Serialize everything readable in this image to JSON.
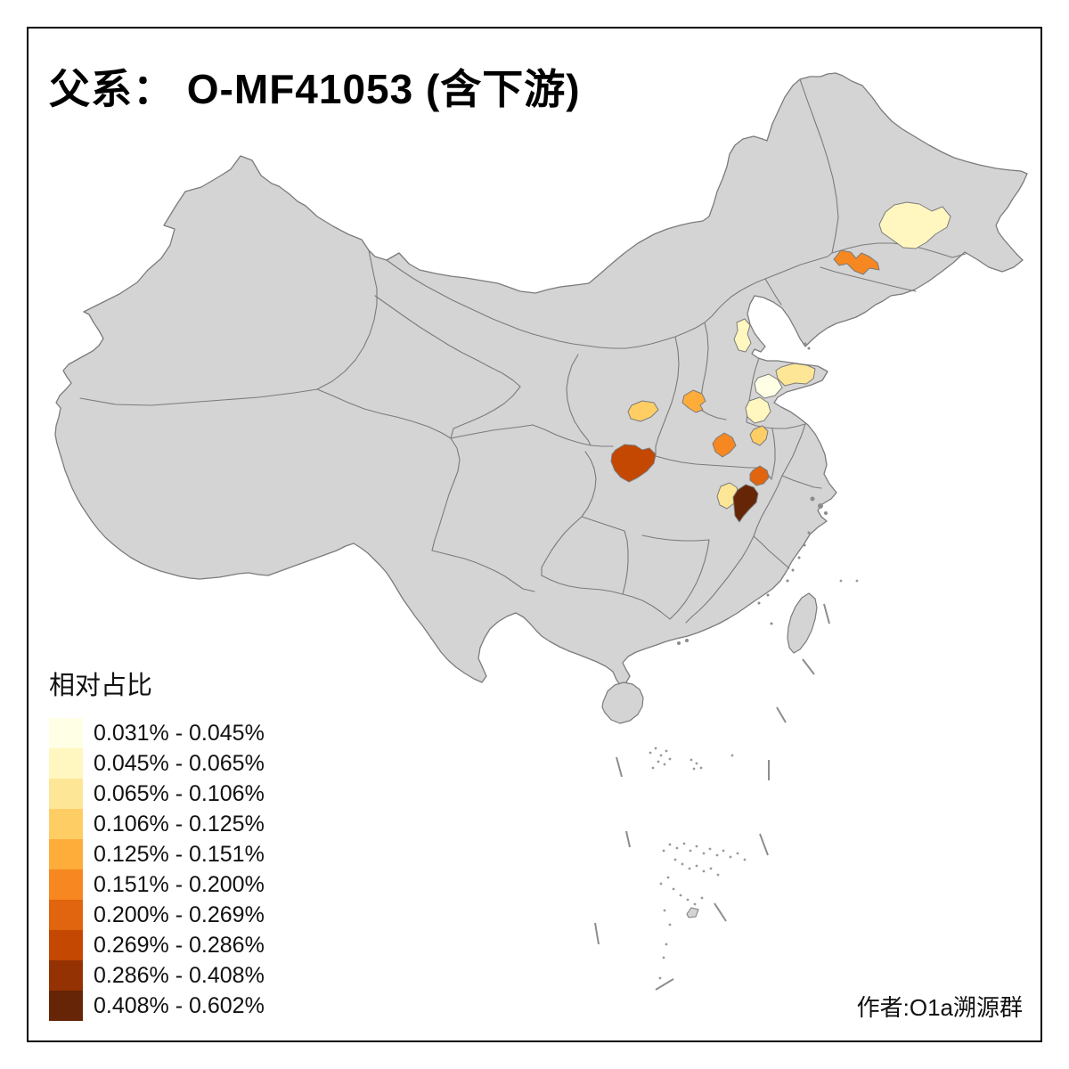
{
  "title": "父系： O-MF41053 (含下游)",
  "attribution": "作者:O1a溯源群",
  "legend": {
    "title": "相对占比",
    "items": [
      {
        "label": "0.031% - 0.045%",
        "color": "#FFFFE5"
      },
      {
        "label": "0.045% - 0.065%",
        "color": "#FFF7BF"
      },
      {
        "label": "0.065% - 0.106%",
        "color": "#FEE697"
      },
      {
        "label": "0.106% - 0.125%",
        "color": "#FECE65"
      },
      {
        "label": "0.125% - 0.151%",
        "color": "#FEAC3A"
      },
      {
        "label": "0.151% - 0.200%",
        "color": "#F68721"
      },
      {
        "label": "0.200% - 0.269%",
        "color": "#E1640E"
      },
      {
        "label": "0.269% - 0.286%",
        "color": "#C44702"
      },
      {
        "label": "0.286% - 0.408%",
        "color": "#953204"
      },
      {
        "label": "0.408% - 0.602%",
        "color": "#662506"
      }
    ]
  },
  "map": {
    "land_fill": "#D4D4D4",
    "border_color": "#7B7B7B",
    "sea_color": "#FFFFFF",
    "frame_color": "#000000",
    "islet_fill": "#8C8C8C",
    "regions": [
      {
        "name": "northeast-heilongjiang-region",
        "class_index": 2,
        "range": "0.045% - 0.065%",
        "color": "#FFF7BF"
      },
      {
        "name": "northeast-jilin-region",
        "class_index": 6,
        "range": "0.151% - 0.200%",
        "color": "#F68721"
      },
      {
        "name": "hebei-coastal-region",
        "class_index": 2,
        "range": "0.045% - 0.065%",
        "color": "#FFF7BF"
      },
      {
        "name": "shandong-peninsula-region",
        "class_index": 3,
        "range": "0.065% - 0.106%",
        "color": "#FEE697"
      },
      {
        "name": "shandong-central-region",
        "class_index": 1,
        "range": "0.031% - 0.045%",
        "color": "#FFFFE5"
      },
      {
        "name": "shandong-south-region",
        "class_index": 2,
        "range": "0.045% - 0.065%",
        "color": "#FFF7BF"
      },
      {
        "name": "gansu-shaanxi-west-region",
        "class_index": 4,
        "range": "0.106% - 0.125%",
        "color": "#FECE65"
      },
      {
        "name": "shanxi-south-region",
        "class_index": 5,
        "range": "0.125% - 0.151%",
        "color": "#FEAC3A"
      },
      {
        "name": "henan-central-region",
        "class_index": 6,
        "range": "0.151% - 0.200%",
        "color": "#F68721"
      },
      {
        "name": "henan-east-region",
        "class_index": 4,
        "range": "0.106% - 0.125%",
        "color": "#FECE65"
      },
      {
        "name": "shaanxi-south-region",
        "class_index": 8,
        "range": "0.269% - 0.286%",
        "color": "#C44702"
      },
      {
        "name": "hubei-northeast-region",
        "class_index": 7,
        "range": "0.200% - 0.269%",
        "color": "#E1640E"
      },
      {
        "name": "hubei-west-region",
        "class_index": 3,
        "range": "0.065% - 0.106%",
        "color": "#FEE697"
      },
      {
        "name": "hubei-east-region",
        "class_index": 10,
        "range": "0.408% - 0.602%",
        "color": "#662506"
      }
    ]
  },
  "chart_data": {
    "type": "choropleth",
    "title": "父系： O-MF41053 (含下游)",
    "legend_title": "相对占比",
    "classes": [
      {
        "range": [
          0.031,
          0.045
        ],
        "color": "#FFFFE5"
      },
      {
        "range": [
          0.045,
          0.065
        ],
        "color": "#FFF7BF"
      },
      {
        "range": [
          0.065,
          0.106
        ],
        "color": "#FEE697"
      },
      {
        "range": [
          0.106,
          0.125
        ],
        "color": "#FECE65"
      },
      {
        "range": [
          0.125,
          0.151
        ],
        "color": "#FEAC3A"
      },
      {
        "range": [
          0.151,
          0.2
        ],
        "color": "#F68721"
      },
      {
        "range": [
          0.2,
          0.269
        ],
        "color": "#E1640E"
      },
      {
        "range": [
          0.269,
          0.286
        ],
        "color": "#C44702"
      },
      {
        "range": [
          0.286,
          0.408
        ],
        "color": "#953204"
      },
      {
        "range": [
          0.408,
          0.602
        ],
        "color": "#662506"
      }
    ],
    "regions": [
      {
        "location": "northeast (Heilongjiang, central)",
        "class_index": 2
      },
      {
        "location": "northeast (Jilin, central)",
        "class_index": 6
      },
      {
        "location": "north (Hebei coastal, near Bohai)",
        "class_index": 2
      },
      {
        "location": "Shandong peninsula (north-east)",
        "class_index": 3
      },
      {
        "location": "Shandong central",
        "class_index": 1
      },
      {
        "location": "Shandong south-west",
        "class_index": 2
      },
      {
        "location": "Gansu/Shaanxi west border",
        "class_index": 4
      },
      {
        "location": "Shanxi south / Henan north border",
        "class_index": 5
      },
      {
        "location": "Henan central",
        "class_index": 6
      },
      {
        "location": "Henan east",
        "class_index": 4
      },
      {
        "location": "Shaanxi south (largest highlighted area)",
        "class_index": 8
      },
      {
        "location": "Hubei north-east",
        "class_index": 7
      },
      {
        "location": "Hubei west-central",
        "class_index": 3
      },
      {
        "location": "Hubei east (darkest area)",
        "class_index": 10
      }
    ]
  }
}
